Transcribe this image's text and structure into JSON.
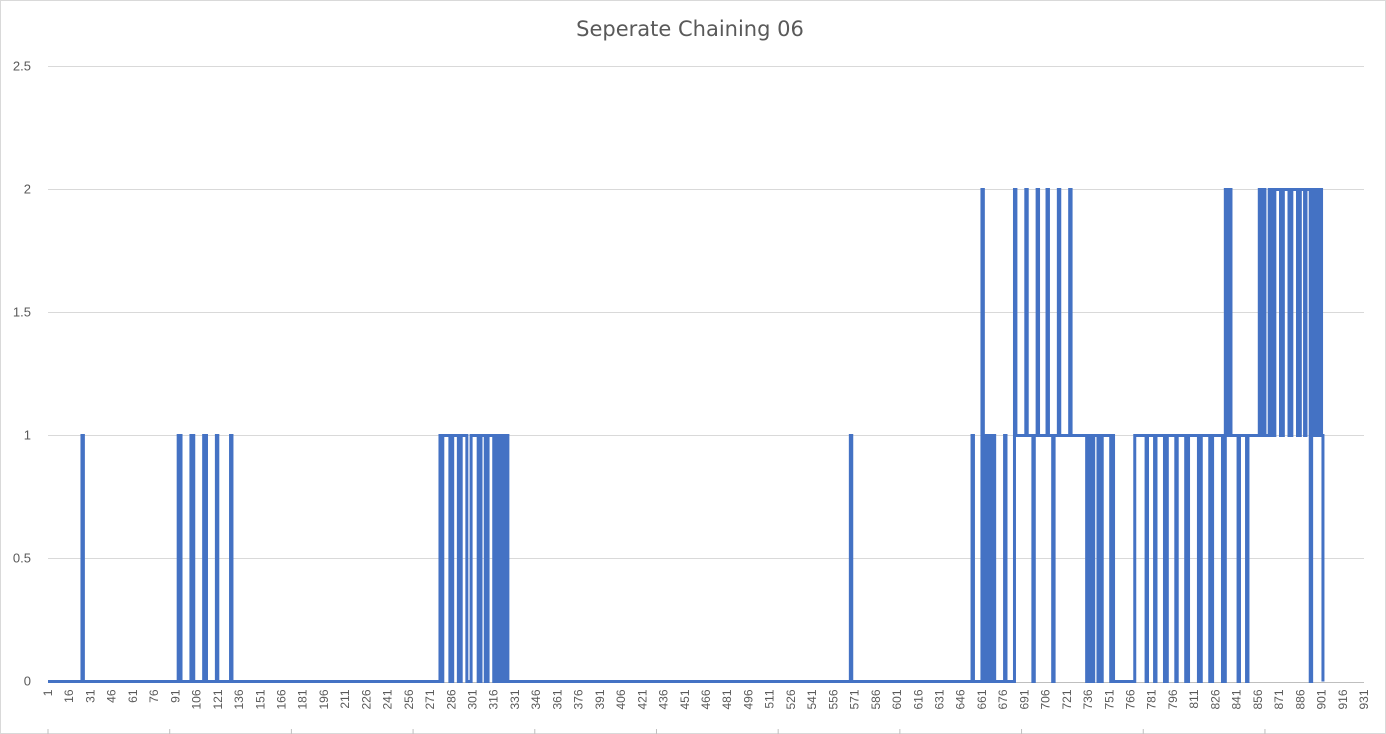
{
  "chart_data": {
    "type": "line",
    "title": "Seperate Chaining 06",
    "xlabel": "",
    "ylabel": "",
    "ylim": [
      0,
      2.5
    ],
    "xlim": [
      1,
      931
    ],
    "grid": true,
    "legend": "none",
    "color": "#4472c4",
    "y_ticks": [
      "0",
      "0.5",
      "1",
      "1.5",
      "2",
      "2.5"
    ],
    "x_ticks": [
      "1",
      "16",
      "31",
      "46",
      "61",
      "76",
      "91",
      "106",
      "121",
      "136",
      "151",
      "166",
      "181",
      "196",
      "211",
      "226",
      "241",
      "256",
      "271",
      "286",
      "301",
      "316",
      "331",
      "346",
      "361",
      "376",
      "391",
      "406",
      "421",
      "436",
      "451",
      "466",
      "481",
      "496",
      "511",
      "526",
      "541",
      "556",
      "571",
      "586",
      "601",
      "616",
      "631",
      "646",
      "661",
      "676",
      "691",
      "706",
      "721",
      "736",
      "751",
      "766",
      "781",
      "796",
      "811",
      "826",
      "841",
      "856",
      "871",
      "886",
      "901",
      "916",
      "931"
    ],
    "series": [
      {
        "segments": [
          [
            1,
            0
          ],
          [
            25,
            0
          ],
          [
            25,
            1
          ],
          [
            26,
            1
          ],
          [
            26,
            0
          ],
          [
            93,
            0
          ],
          [
            93,
            1
          ],
          [
            95,
            1
          ],
          [
            95,
            0
          ],
          [
            102,
            0
          ],
          [
            102,
            1
          ],
          [
            104,
            1
          ],
          [
            104,
            0
          ],
          [
            111,
            0
          ],
          [
            111,
            1
          ],
          [
            113,
            1
          ],
          [
            113,
            0
          ],
          [
            120,
            0
          ],
          [
            120,
            1
          ],
          [
            121,
            1
          ],
          [
            121,
            0
          ],
          [
            130,
            0
          ],
          [
            130,
            1
          ],
          [
            131,
            1
          ],
          [
            131,
            0
          ],
          [
            278,
            0
          ],
          [
            278,
            1
          ],
          [
            279,
            1
          ],
          [
            279,
            0
          ],
          [
            280,
            0
          ],
          [
            280,
            1
          ],
          [
            285,
            1
          ],
          [
            285,
            0
          ],
          [
            287,
            0
          ],
          [
            287,
            1
          ],
          [
            291,
            1
          ],
          [
            291,
            0
          ],
          [
            293,
            0
          ],
          [
            293,
            1
          ],
          [
            297,
            1
          ],
          [
            297,
            0
          ],
          [
            300,
            0
          ],
          [
            300,
            1
          ],
          [
            305,
            1
          ],
          [
            305,
            0
          ],
          [
            307,
            0
          ],
          [
            307,
            1
          ],
          [
            310,
            1
          ],
          [
            310,
            0
          ],
          [
            312,
            0
          ],
          [
            312,
            1
          ],
          [
            316,
            1
          ],
          [
            316,
            0
          ],
          [
            318,
            0
          ],
          [
            318,
            1
          ],
          [
            320,
            1
          ],
          [
            320,
            0
          ],
          [
            322,
            0
          ],
          [
            322,
            1
          ],
          [
            323,
            1
          ],
          [
            323,
            0
          ],
          [
            324,
            0
          ],
          [
            324,
            1
          ],
          [
            326,
            1
          ],
          [
            326,
            0
          ],
          [
            568,
            0
          ],
          [
            568,
            1
          ],
          [
            569,
            1
          ],
          [
            569,
            0
          ],
          [
            654,
            0
          ],
          [
            654,
            1
          ],
          [
            655,
            1
          ],
          [
            655,
            0
          ],
          [
            661,
            0
          ],
          [
            661,
            2
          ],
          [
            662,
            2
          ],
          [
            662,
            0
          ],
          [
            663,
            0
          ],
          [
            663,
            1
          ],
          [
            664,
            1
          ],
          [
            664,
            0
          ],
          [
            665,
            0
          ],
          [
            665,
            1
          ],
          [
            666,
            1
          ],
          [
            666,
            0
          ],
          [
            667,
            0
          ],
          [
            667,
            1
          ],
          [
            668,
            1
          ],
          [
            668,
            0
          ],
          [
            669,
            0
          ],
          [
            669,
            1
          ],
          [
            670,
            1
          ],
          [
            670,
            0
          ],
          [
            677,
            0
          ],
          [
            677,
            1
          ],
          [
            678,
            1
          ],
          [
            678,
            0
          ],
          [
            684,
            0
          ],
          [
            684,
            2
          ],
          [
            685,
            2
          ],
          [
            685,
            1
          ],
          [
            692,
            1
          ],
          [
            692,
            2
          ],
          [
            693,
            2
          ],
          [
            693,
            1
          ],
          [
            697,
            1
          ],
          [
            697,
            0
          ],
          [
            698,
            0
          ],
          [
            698,
            1
          ],
          [
            700,
            1
          ],
          [
            700,
            2
          ],
          [
            701,
            2
          ],
          [
            701,
            1
          ],
          [
            707,
            1
          ],
          [
            707,
            2
          ],
          [
            708,
            2
          ],
          [
            708,
            1
          ],
          [
            711,
            1
          ],
          [
            711,
            0
          ],
          [
            712,
            0
          ],
          [
            712,
            1
          ],
          [
            715,
            1
          ],
          [
            715,
            2
          ],
          [
            716,
            2
          ],
          [
            716,
            1
          ],
          [
            723,
            1
          ],
          [
            723,
            2
          ],
          [
            724,
            2
          ],
          [
            724,
            1
          ],
          [
            735,
            1
          ],
          [
            735,
            0
          ],
          [
            736,
            0
          ],
          [
            736,
            1
          ],
          [
            737,
            1
          ],
          [
            737,
            0
          ],
          [
            738,
            0
          ],
          [
            738,
            1
          ],
          [
            739,
            1
          ],
          [
            739,
            0
          ],
          [
            740,
            0
          ],
          [
            740,
            1
          ],
          [
            743,
            1
          ],
          [
            743,
            0
          ],
          [
            744,
            0
          ],
          [
            744,
            1
          ],
          [
            745,
            1
          ],
          [
            745,
            0
          ],
          [
            746,
            0
          ],
          [
            746,
            1
          ],
          [
            752,
            1
          ],
          [
            752,
            0
          ],
          [
            753,
            0
          ],
          [
            753,
            1
          ],
          [
            754,
            1
          ],
          [
            754,
            0
          ],
          [
            769,
            0
          ],
          [
            769,
            1
          ],
          [
            777,
            1
          ],
          [
            777,
            0
          ],
          [
            778,
            0
          ],
          [
            778,
            1
          ],
          [
            783,
            1
          ],
          [
            783,
            0
          ],
          [
            784,
            0
          ],
          [
            784,
            1
          ],
          [
            790,
            1
          ],
          [
            790,
            0
          ],
          [
            792,
            0
          ],
          [
            792,
            1
          ],
          [
            798,
            1
          ],
          [
            798,
            0
          ],
          [
            799,
            0
          ],
          [
            799,
            1
          ],
          [
            805,
            1
          ],
          [
            805,
            0
          ],
          [
            807,
            0
          ],
          [
            807,
            1
          ],
          [
            814,
            1
          ],
          [
            814,
            0
          ],
          [
            816,
            0
          ],
          [
            816,
            1
          ],
          [
            822,
            1
          ],
          [
            822,
            0
          ],
          [
            824,
            0
          ],
          [
            824,
            1
          ],
          [
            831,
            1
          ],
          [
            831,
            0
          ],
          [
            833,
            0
          ],
          [
            833,
            2
          ],
          [
            834,
            2
          ],
          [
            834,
            1
          ],
          [
            835,
            1
          ],
          [
            835,
            2
          ],
          [
            837,
            2
          ],
          [
            837,
            1
          ],
          [
            842,
            1
          ],
          [
            842,
            0
          ],
          [
            843,
            0
          ],
          [
            843,
            1
          ],
          [
            848,
            1
          ],
          [
            848,
            0
          ],
          [
            849,
            0
          ],
          [
            849,
            1
          ],
          [
            857,
            1
          ],
          [
            857,
            2
          ],
          [
            858,
            2
          ],
          [
            858,
            1
          ],
          [
            859,
            1
          ],
          [
            859,
            2
          ],
          [
            861,
            2
          ],
          [
            861,
            1
          ],
          [
            864,
            1
          ],
          [
            864,
            2
          ],
          [
            866,
            2
          ],
          [
            866,
            1
          ],
          [
            868,
            1
          ],
          [
            868,
            2
          ],
          [
            872,
            2
          ],
          [
            872,
            1
          ],
          [
            874,
            1
          ],
          [
            874,
            2
          ],
          [
            878,
            2
          ],
          [
            878,
            1
          ],
          [
            880,
            1
          ],
          [
            880,
            2
          ],
          [
            884,
            2
          ],
          [
            884,
            1
          ],
          [
            886,
            1
          ],
          [
            886,
            2
          ],
          [
            889,
            2
          ],
          [
            889,
            1
          ],
          [
            890,
            1
          ],
          [
            890,
            2
          ],
          [
            893,
            2
          ],
          [
            893,
            0
          ],
          [
            894,
            0
          ],
          [
            894,
            2
          ],
          [
            896,
            2
          ],
          [
            896,
            1
          ],
          [
            898,
            1
          ],
          [
            898,
            2
          ],
          [
            899,
            2
          ],
          [
            899,
            1
          ],
          [
            900,
            1
          ],
          [
            900,
            2
          ],
          [
            901,
            2
          ],
          [
            901,
            1
          ],
          [
            902,
            1
          ],
          [
            902,
            0
          ]
        ]
      }
    ]
  }
}
